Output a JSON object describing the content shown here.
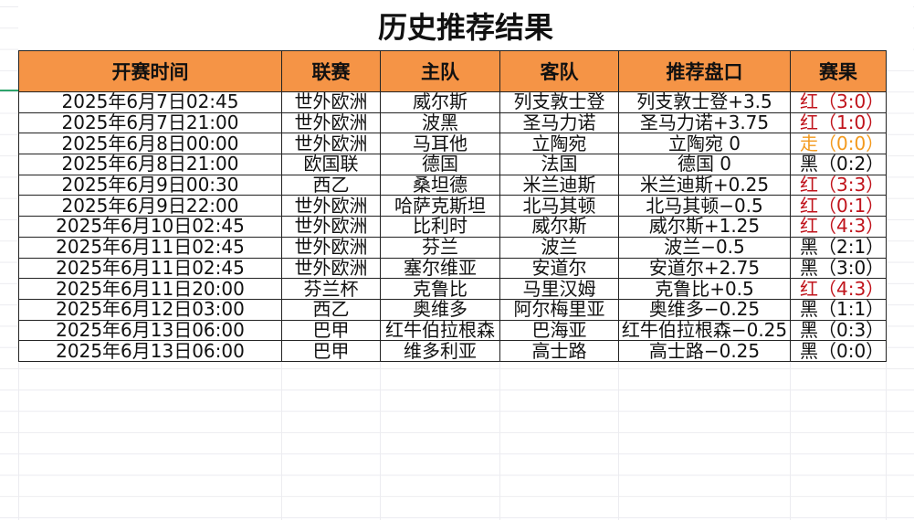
{
  "title": "历史推荐结果",
  "colors": {
    "header_bg": "#f59446",
    "red": "#c0141c",
    "orange": "#f39a1e",
    "black": "#111111"
  },
  "headers": [
    "开赛时间",
    "联赛",
    "主队",
    "客队",
    "推荐盘口",
    "赛果"
  ],
  "rows": [
    {
      "time": "2025年6月7日02:45",
      "league": "世外欧洲",
      "home": "威尔斯",
      "away": "列支敦士登",
      "pick": "列支敦士登+3.5",
      "result": "红（3:0）",
      "color": "red"
    },
    {
      "time": "2025年6月7日21:00",
      "league": "世外欧洲",
      "home": "波黑",
      "away": "圣马力诺",
      "pick": "圣马力诺+3.75",
      "result": "红（1:0）",
      "color": "red"
    },
    {
      "time": "2025年6月8日00:00",
      "league": "世外欧洲",
      "home": "马耳他",
      "away": "立陶宛",
      "pick": "立陶宛 0",
      "result": "走（0:0）",
      "color": "orange"
    },
    {
      "time": "2025年6月8日21:00",
      "league": "欧国联",
      "home": "德国",
      "away": "法国",
      "pick": "德国 0",
      "result": "黑（0:2）",
      "color": "black"
    },
    {
      "time": "2025年6月9日00:30",
      "league": "西乙",
      "home": "桑坦德",
      "away": "米兰迪斯",
      "pick": "米兰迪斯+0.25",
      "result": "红（3:3）",
      "color": "red"
    },
    {
      "time": "2025年6月9日22:00",
      "league": "世外欧洲",
      "home": "哈萨克斯坦",
      "away": "北马其顿",
      "pick": "北马其顿−0.5",
      "result": "红（0:1）",
      "color": "red"
    },
    {
      "time": "2025年6月10日02:45",
      "league": "世外欧洲",
      "home": "比利时",
      "away": "威尔斯",
      "pick": "威尔斯+1.25",
      "result": "红（4:3）",
      "color": "red"
    },
    {
      "time": "2025年6月11日02:45",
      "league": "世外欧洲",
      "home": "芬兰",
      "away": "波兰",
      "pick": "波兰−0.5",
      "result": "黑（2:1）",
      "color": "black"
    },
    {
      "time": "2025年6月11日02:45",
      "league": "世外欧洲",
      "home": "塞尔维亚",
      "away": "安道尔",
      "pick": "安道尔+2.75",
      "result": "黑（3:0）",
      "color": "black"
    },
    {
      "time": "2025年6月11日20:00",
      "league": "芬兰杯",
      "home": "克鲁比",
      "away": "马里汉姆",
      "pick": "克鲁比+0.5",
      "result": "红（4:3）",
      "color": "red"
    },
    {
      "time": "2025年6月12日03:00",
      "league": "西乙",
      "home": "奥维多",
      "away": "阿尔梅里亚",
      "pick": "奥维多−0.25",
      "result": "黑（1:1）",
      "color": "black"
    },
    {
      "time": "2025年6月13日06:00",
      "league": "巴甲",
      "home": "红牛伯拉根森",
      "away": "巴海亚",
      "pick": "红牛伯拉根森−0.25",
      "result": "黑（0:3）",
      "color": "black"
    },
    {
      "time": "2025年6月13日06:00",
      "league": "巴甲",
      "home": "维多利亚",
      "away": "高士路",
      "pick": "高士路−0.25",
      "result": "黑（0:0）",
      "color": "black"
    }
  ]
}
